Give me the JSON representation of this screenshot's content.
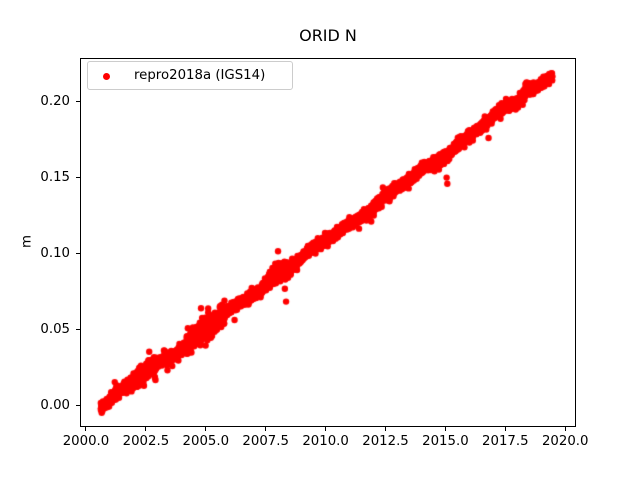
{
  "figure": {
    "background": "#ffffff"
  },
  "chart_data": {
    "type": "scatter",
    "title": "ORID N",
    "xlabel": "",
    "ylabel": "m",
    "grid": false,
    "legend_position": "upper left",
    "legend": [
      {
        "label": "repro2018a (IGS14)",
        "color": "#ff0000",
        "marker": "dot"
      }
    ],
    "axes": {
      "xlim": [
        1999.75,
        2020.45
      ],
      "ylim": [
        -0.0139,
        0.2286
      ],
      "xtick_values": [
        2000.0,
        2002.5,
        2005.0,
        2007.5,
        2010.0,
        2012.5,
        2015.0,
        2017.5,
        2020.0
      ],
      "xtick_labels": [
        "2000.0",
        "2002.5",
        "2005.0",
        "2007.5",
        "2010.0",
        "2012.5",
        "2015.0",
        "2017.5",
        "2020.0"
      ],
      "ytick_values": [
        0.0,
        0.05,
        0.1,
        0.15,
        0.2
      ],
      "ytick_labels": [
        "0.00",
        "0.05",
        "0.10",
        "0.15",
        "0.20"
      ]
    },
    "series": [
      {
        "name": "repro2018a (IGS14)",
        "color": "#ff0000",
        "marker_diameter_px": 6.4,
        "cadence_per_year": 365,
        "trend": {
          "x_start": 2000.62,
          "y_start": 0.0,
          "x_end": 2019.46,
          "y_end": 0.2175,
          "slope_m_per_year": 0.01154
        },
        "noise_sd_m": 0.0013,
        "wiggle": {
          "amplitudes": [
            0.0011,
            0.0008
          ],
          "periods_years": [
            3.7,
            1.6
          ],
          "phases": [
            0.8,
            2.6
          ]
        },
        "noisy_periods": [
          {
            "from": 2001.85,
            "to": 2002.95,
            "mult": 1.7
          },
          {
            "from": 2004.2,
            "to": 2005.8,
            "mult": 2.1
          },
          {
            "from": 2007.6,
            "to": 2008.55,
            "mult": 1.9
          },
          {
            "from": 2018.2,
            "to": 2018.55,
            "mult": 1.4
          }
        ],
        "bumps": [
          {
            "center": 2008.05,
            "width": 0.3,
            "amplitude": 0.003
          },
          {
            "center": 2018.4,
            "width": 0.12,
            "amplitude": 0.0045
          }
        ],
        "outliers": [
          [
            2001.2,
            0.0156
          ],
          [
            2002.9,
            0.017
          ],
          [
            2005.1,
            0.064
          ],
          [
            2005.7,
            0.0655
          ],
          [
            2006.2,
            0.0564
          ],
          [
            2008.3,
            0.077
          ],
          [
            2008.35,
            0.0685
          ],
          [
            2015.05,
            0.15
          ],
          [
            2015.08,
            0.146
          ],
          [
            2016.0,
            0.173
          ],
          [
            2016.8,
            0.176
          ]
        ],
        "random_seed": 7
      }
    ]
  }
}
